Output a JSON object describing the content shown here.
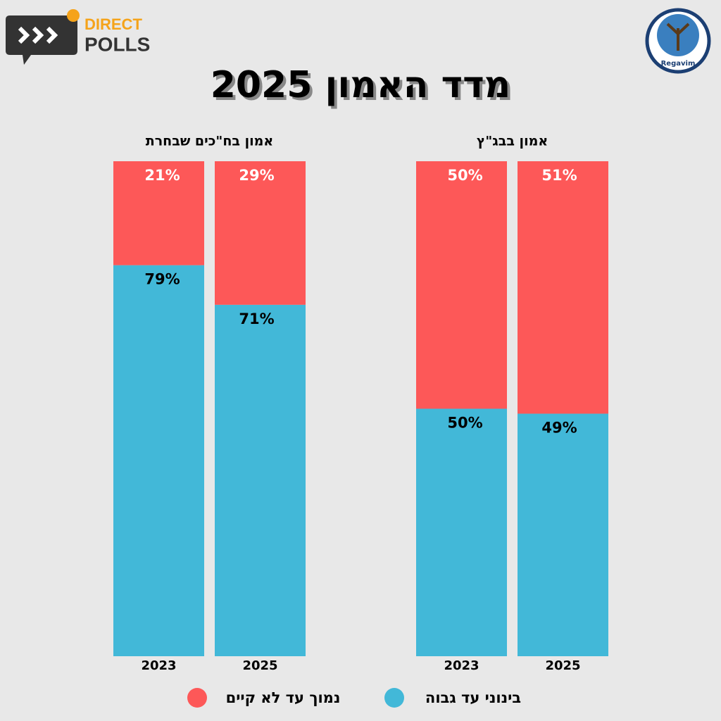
{
  "header": {
    "title": "מדד האמון 2025",
    "brand_line1": "DIRECT",
    "brand_line2": "POLLS",
    "partner": "Regavim"
  },
  "chart_data": [
    {
      "type": "stacked-bar",
      "title": "אמון בח\"כים שבחרת",
      "categories": [
        "2023",
        "2025"
      ],
      "ylim": [
        0,
        100
      ],
      "series": [
        {
          "name": "בינוני עד גבוה",
          "color": "#42b8d8",
          "values": [
            79,
            71
          ],
          "value_labels": [
            "79%",
            "71%"
          ]
        },
        {
          "name": "נמוך עד לא קיים",
          "color": "#fd5858",
          "values": [
            21,
            29
          ],
          "value_labels": [
            "21%",
            "29%"
          ]
        }
      ]
    },
    {
      "type": "stacked-bar",
      "title": "אמון בבג\"ץ",
      "categories": [
        "2023",
        "2025"
      ],
      "ylim": [
        0,
        100
      ],
      "series": [
        {
          "color": "#42b8d8",
          "values": [
            50,
            49
          ],
          "value_labels": [
            "50%",
            "49%"
          ]
        },
        {
          "color": "#fd5858",
          "values": [
            50,
            51
          ],
          "value_labels": [
            "50%",
            "51%"
          ]
        }
      ]
    }
  ]
}
